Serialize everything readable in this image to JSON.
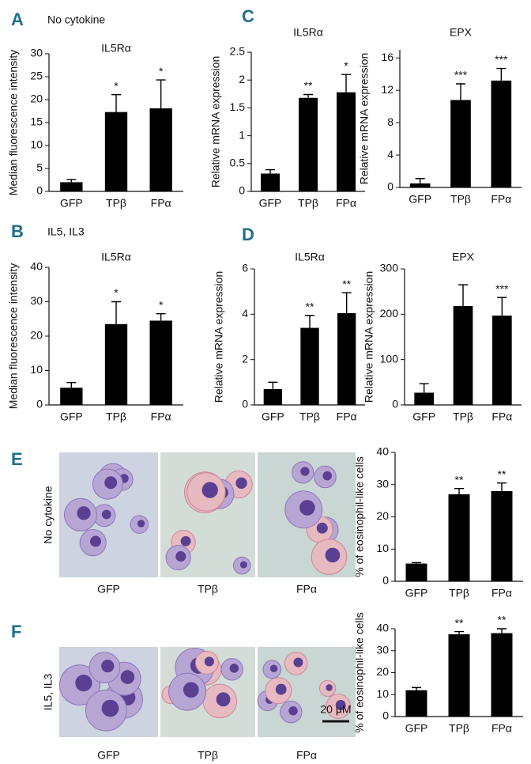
{
  "chart_data": [
    {
      "type": "bar",
      "panel": "A",
      "subtitle": "No cytokine",
      "title": "IL5Rα",
      "y_label": "Median fluorescence intensity",
      "categories": [
        "GFP",
        "TPβ",
        "FPα"
      ],
      "values": [
        2,
        17.3,
        18.1
      ],
      "errors": [
        0.6,
        3.8,
        6.2
      ],
      "annotations": [
        null,
        "*",
        "*"
      ],
      "ylim": [
        0,
        30
      ],
      "yticks": [
        0,
        5,
        10,
        15,
        20,
        25,
        30
      ],
      "color": "#000000"
    },
    {
      "type": "bar",
      "panel": "B",
      "subtitle": "IL5, IL3",
      "title": "IL5Rα",
      "y_label": "Median fluorescence intensity",
      "categories": [
        "GFP",
        "TPβ",
        "FPα"
      ],
      "values": [
        5,
        23.5,
        24.5
      ],
      "errors": [
        1.5,
        6.5,
        2
      ],
      "annotations": [
        null,
        "*",
        "*"
      ],
      "ylim": [
        0,
        40
      ],
      "yticks": [
        0,
        10,
        20,
        30,
        40
      ],
      "color": "#000000"
    },
    {
      "type": "bar",
      "panel": "C",
      "title": "IL5Rα",
      "y_label": "Relative mRNA expression",
      "categories": [
        "GFP",
        "TPβ",
        "FPα"
      ],
      "values": [
        0.32,
        1.68,
        1.78
      ],
      "errors": [
        0.07,
        0.06,
        0.32
      ],
      "annotations": [
        null,
        "**",
        "*"
      ],
      "ylim": [
        0,
        2.5
      ],
      "yticks": [
        0,
        0.5,
        1,
        1.5,
        2,
        2.5
      ],
      "color": "#000000"
    },
    {
      "type": "bar",
      "title": "EPX",
      "y_label": "Relative mRNA expression",
      "categories": [
        "GFP",
        "TPβ",
        "FPα"
      ],
      "values": [
        0.5,
        10.8,
        13.2
      ],
      "errors": [
        0.6,
        2,
        1.5
      ],
      "annotations": [
        null,
        "***",
        "***"
      ],
      "ylim": [
        0,
        17
      ],
      "yticks": [
        0,
        4,
        8,
        12,
        16
      ],
      "color": "#000000"
    },
    {
      "type": "bar",
      "panel": "D",
      "title": "IL5Rα",
      "y_label": "Relative mRNA expression",
      "categories": [
        "GFP",
        "TPβ",
        "FPα"
      ],
      "values": [
        0.7,
        3.4,
        4.05
      ],
      "errors": [
        0.3,
        0.55,
        0.9
      ],
      "annotations": [
        null,
        "**",
        "**"
      ],
      "ylim": [
        0,
        6
      ],
      "yticks": [
        0,
        2,
        4,
        6
      ],
      "color": "#000000"
    },
    {
      "type": "bar",
      "title": "EPX",
      "y_label": "Relative mRNA expression",
      "categories": [
        "GFP",
        "TPβ",
        "FPα"
      ],
      "values": [
        27,
        218,
        197
      ],
      "errors": [
        20,
        47,
        40
      ],
      "annotations": [
        null,
        null,
        "***"
      ],
      "ylim": [
        0,
        300
      ],
      "yticks": [
        0,
        100,
        200,
        300
      ],
      "color": "#000000"
    },
    {
      "type": "bar",
      "y_label": "% of eosinophil-like cells",
      "categories": [
        "GFP",
        "TPβ",
        "FPα"
      ],
      "values": [
        5.5,
        27,
        28
      ],
      "errors": [
        0.3,
        1.8,
        2.5
      ],
      "annotations": [
        null,
        "**",
        "**"
      ],
      "ylim": [
        0,
        40
      ],
      "yticks": [
        0,
        10,
        20,
        30,
        40
      ],
      "color": "#000000"
    },
    {
      "type": "bar",
      "y_label": "% of eosinophil-like cells",
      "categories": [
        "GFP",
        "TPβ",
        "FPα"
      ],
      "values": [
        12,
        37.5,
        38
      ],
      "errors": [
        1.2,
        1.2,
        2
      ],
      "annotations": [
        null,
        "**",
        "**"
      ],
      "ylim": [
        0,
        40
      ],
      "yticks": [
        0,
        10,
        20,
        30,
        40
      ],
      "color": "#000000"
    }
  ],
  "micrographs": [
    {
      "panel": "E",
      "condition": "No cytokine",
      "images": [
        "GFP",
        "TPβ",
        "FPα"
      ]
    },
    {
      "panel": "F",
      "condition": "IL5, IL3",
      "images": [
        "GFP",
        "TPβ",
        "FPα"
      ],
      "scale_bar": "20 μM"
    }
  ]
}
